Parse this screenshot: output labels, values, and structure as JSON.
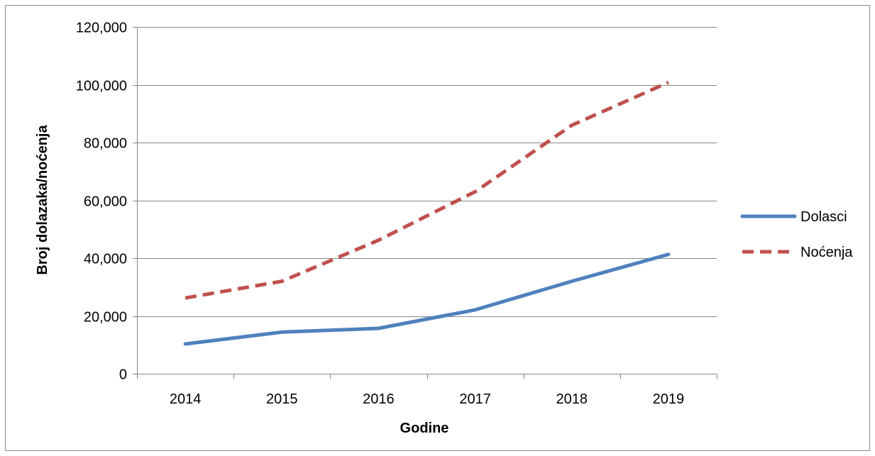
{
  "chart_data": {
    "type": "line",
    "title": "",
    "xlabel": "Godine",
    "ylabel": "Broj dolazaka/noćenja",
    "categories": [
      "2014",
      "2015",
      "2016",
      "2017",
      "2018",
      "2019"
    ],
    "ylim": [
      0,
      120000
    ],
    "yticks": [
      0,
      20000,
      40000,
      60000,
      80000,
      100000,
      120000
    ],
    "ytick_labels": [
      "0",
      "20,000",
      "40,000",
      "60,000",
      "80,000",
      "100,000",
      "120,000"
    ],
    "grid": true,
    "legend_position": "right",
    "series": [
      {
        "name": "Dolasci",
        "values": [
          10300,
          14400,
          15700,
          22100,
          32000,
          41300
        ],
        "color": "#4F81BD",
        "dash": "solid"
      },
      {
        "name": "Noćenja",
        "values": [
          26200,
          32000,
          46200,
          63000,
          86000,
          100800
        ],
        "color": "#C0504D",
        "dash": "dashed"
      }
    ]
  }
}
